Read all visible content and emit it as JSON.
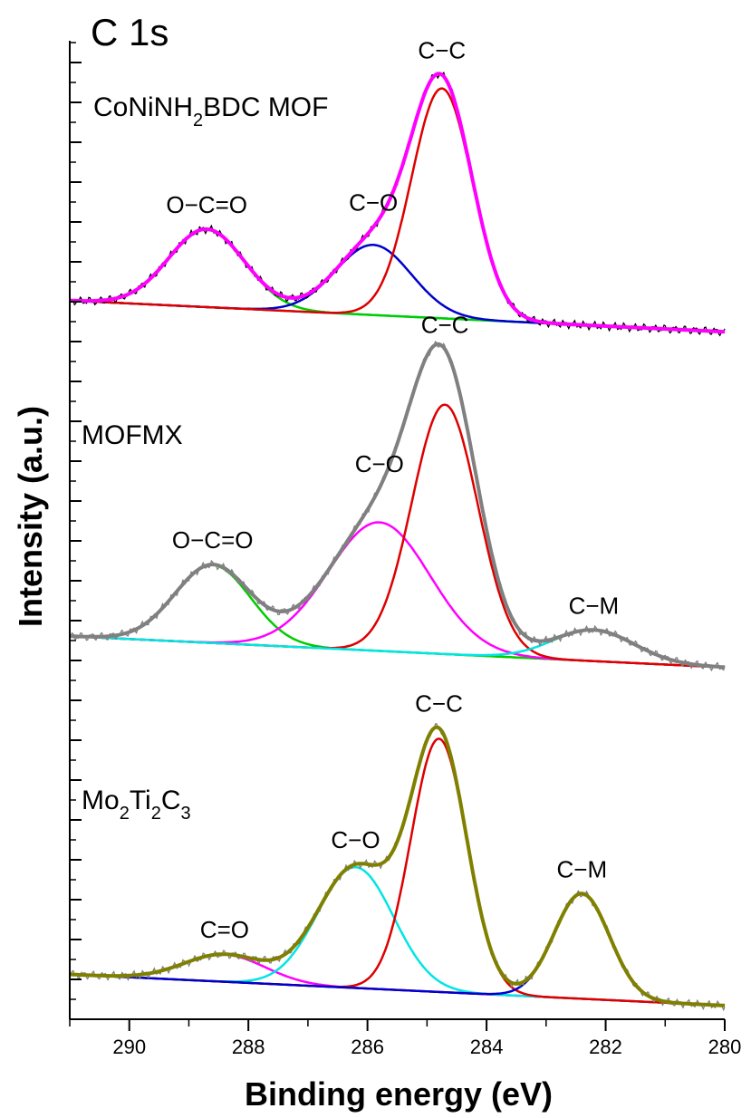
{
  "chart_data": {
    "type": "line",
    "title": "C 1s",
    "xlabel": "Binding energy (eV)",
    "ylabel": "Intensity (a.u.)",
    "xlim": [
      291,
      280
    ],
    "x_ticks": [
      "290",
      "288",
      "286",
      "284",
      "282",
      "280"
    ],
    "y_tick_labels": "none",
    "grid": false,
    "panels": [
      {
        "sample": "CoNiNH2BDC MOF",
        "sample_parts": [
          {
            "text": "CoNiNH",
            "sub": false
          },
          {
            "text": "2",
            "sub": true
          },
          {
            "text": "BDC MOF",
            "sub": false
          }
        ],
        "baseline_rel": [
          1.0,
          0.02
        ],
        "envelope_color": "#ff00ff",
        "raw_color": "#000000",
        "background_color": "#00e5e5",
        "peaks": [
          {
            "label": "O−C=O",
            "center": 288.7,
            "fwhm": 1.5,
            "height": 1.0,
            "color": "#00cc00"
          },
          {
            "label": "C−O",
            "center": 285.9,
            "fwhm": 1.5,
            "height": 0.9,
            "color": "#0000cc"
          },
          {
            "label": "C−C",
            "center": 284.75,
            "fwhm": 1.2,
            "height": 2.95,
            "color": "#dd0000"
          }
        ]
      },
      {
        "sample": "MOFMX",
        "sample_parts": [
          {
            "text": "MOFMX",
            "sub": false
          }
        ],
        "baseline_rel": [
          1.0,
          0.05
        ],
        "envelope_color": "#808080",
        "raw_color": "#808080",
        "background_color": "#e5e500",
        "peaks": [
          {
            "label": "O−C=O",
            "center": 288.6,
            "fwhm": 1.5,
            "height": 1.0,
            "color": "#00cc00"
          },
          {
            "label": "C−O",
            "center": 285.8,
            "fwhm": 2.0,
            "height": 1.65,
            "color": "#ff00ff"
          },
          {
            "label": "C−C",
            "center": 284.7,
            "fwhm": 1.3,
            "height": 3.2,
            "color": "#dd0000"
          },
          {
            "label": "C−M",
            "center": 282.2,
            "fwhm": 1.6,
            "height": 0.4,
            "color": "#00e5e5"
          }
        ]
      },
      {
        "sample": "Mo2Ti2C3",
        "sample_parts": [
          {
            "text": "Mo",
            "sub": false
          },
          {
            "text": "2",
            "sub": true
          },
          {
            "text": "Ti",
            "sub": false
          },
          {
            "text": "2",
            "sub": true
          },
          {
            "text": "C",
            "sub": false
          },
          {
            "text": "3",
            "sub": true
          }
        ],
        "baseline_rel": [
          1.0,
          0.0
        ],
        "envelope_color": "#808000",
        "raw_color": "#808080",
        "background_color": "#e5e500",
        "peaks": [
          {
            "label": "C=O",
            "center": 288.4,
            "fwhm": 1.6,
            "height": 0.35,
            "color": "#ff00ff"
          },
          {
            "label": "C−O",
            "center": 286.2,
            "fwhm": 1.5,
            "height": 1.55,
            "color": "#00e5e5"
          },
          {
            "label": "C−C",
            "center": 284.8,
            "fwhm": 1.1,
            "height": 3.25,
            "color": "#dd0000"
          },
          {
            "label": "C−M",
            "center": 282.4,
            "fwhm": 1.1,
            "height": 1.35,
            "color": "#0000cc"
          }
        ]
      }
    ]
  }
}
